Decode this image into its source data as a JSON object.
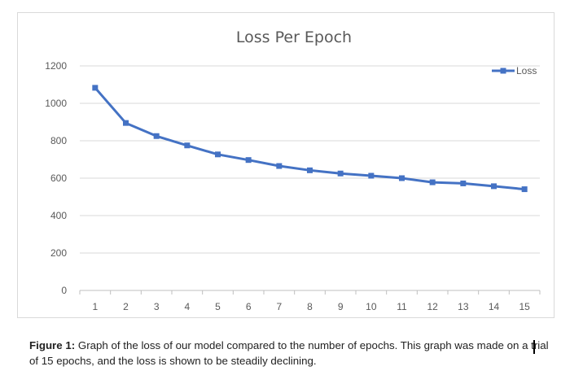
{
  "chart_data": {
    "type": "line",
    "title": "Loss Per Epoch",
    "x": [
      "1",
      "2",
      "3",
      "4",
      "5",
      "6",
      "7",
      "8",
      "9",
      "10",
      "11",
      "12",
      "13",
      "14",
      "15"
    ],
    "series": [
      {
        "name": "Loss",
        "color": "#4472C4",
        "values": [
          1083,
          895,
          825,
          775,
          727,
          697,
          665,
          642,
          625,
          613,
          600,
          578,
          572,
          557,
          541
        ]
      }
    ],
    "y_ticks": [
      "0",
      "200",
      "400",
      "600",
      "800",
      "1000",
      "1200"
    ],
    "ylim": [
      0,
      1200
    ],
    "xlabel": "",
    "ylabel": "",
    "grid": true,
    "legend": "top-right",
    "marker": "square"
  },
  "caption": {
    "label": "Figure 1:",
    "text": " Graph of the loss of our model compared to the number of epochs. This graph was made on a trial of 15 epochs, and the loss is shown to be steadily declining."
  }
}
